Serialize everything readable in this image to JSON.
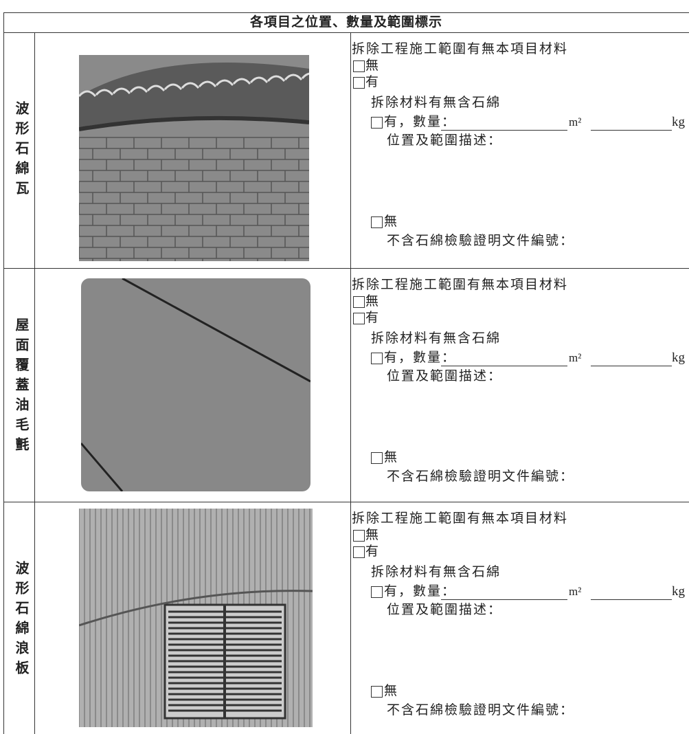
{
  "header": {
    "title": "各項目之位置、數量及範圍標示"
  },
  "rows": [
    {
      "label": "波形石綿瓦",
      "question": "拆除工程施工範圍有無本項目材料",
      "option_no": "無",
      "option_yes": "有",
      "asbestos_question": "拆除材料有無含石綿",
      "asbestos_yes": "有，數量：",
      "unit_area": "m²",
      "unit_weight": "kg",
      "location": "位置及範圍描述：",
      "asbestos_no": "無",
      "certificate": "不含石綿檢驗證明文件編號："
    },
    {
      "label": "屋面覆蓋油毛氈",
      "question": "拆除工程施工範圍有無本項目材料",
      "option_no": "無",
      "option_yes": "有",
      "asbestos_question": "拆除材料有無含石綿",
      "asbestos_yes": "有，數量：",
      "unit_area": "m²",
      "unit_weight": "kg",
      "location": "位置及範圍描述：",
      "asbestos_no": "無",
      "certificate": "不含石綿檢驗證明文件編號："
    },
    {
      "label": "波形石綿浪板",
      "question": "拆除工程施工範圍有無本項目材料",
      "option_no": "無",
      "option_yes": "有",
      "asbestos_question": "拆除材料有無含石綿",
      "asbestos_yes": "有，數量：",
      "unit_area": "m²",
      "unit_weight": "kg",
      "location": "位置及範圍描述：",
      "asbestos_no": "無",
      "certificate": "不含石綿檢驗證明文件編號："
    }
  ]
}
